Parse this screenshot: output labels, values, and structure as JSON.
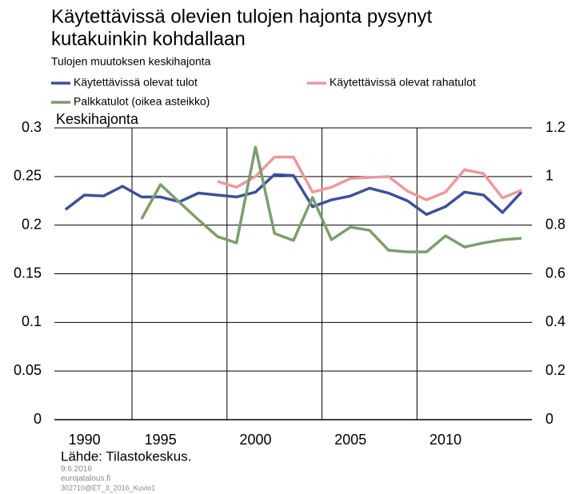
{
  "chart_data": {
    "type": "line",
    "title": [
      "Käytettävissä olevien tulojen hajonta pysynyt",
      "kutakuinkin kohdallaan"
    ],
    "subtitle": "Tulojen muutoksen keskihajonta",
    "y_label": "Keskihajonta",
    "source": "Lähde: Tilastokeskus.",
    "notes": [
      "9.6.2016",
      "eurojatalous.fi",
      "302710@ET_3_2016_Kuvio1"
    ],
    "categories": [
      null,
      "1990",
      null,
      null,
      null,
      "1995",
      null,
      null,
      null,
      null,
      "2000",
      null,
      null,
      null,
      null,
      "2005",
      null,
      null,
      null,
      null,
      "2010",
      null,
      null,
      null,
      null
    ],
    "series": [
      {
        "name": "Käytettävissä olevat tulot",
        "color": "#3f4f9d",
        "values": [
          0.216,
          0.231,
          0.23,
          0.24,
          0.229,
          0.229,
          0.224,
          0.233,
          0.231,
          0.229,
          0.234,
          0.252,
          0.251,
          0.219,
          0.226,
          0.23,
          0.238,
          0.233,
          0.225,
          0.211,
          0.219,
          0.234,
          0.231,
          0.213,
          0.234
        ]
      },
      {
        "name": "Käytettävissä olevat rahatulot",
        "color": "#f0989a",
        "values": [
          null,
          null,
          null,
          null,
          null,
          null,
          null,
          null,
          0.245,
          0.239,
          0.25,
          0.27,
          0.27,
          0.234,
          0.239,
          0.248,
          0.249,
          0.25,
          0.235,
          0.226,
          0.234,
          0.257,
          0.253,
          0.228,
          0.236
        ]
      },
      {
        "name": "Palkkatulot (oikea asteikko)",
        "color": "#7b9f6d",
        "axis": "y2",
        "values": [
          null,
          null,
          null,
          null,
          0.825,
          0.967,
          0.894,
          0.822,
          0.753,
          0.727,
          1.121,
          0.766,
          0.737,
          0.914,
          0.74,
          0.792,
          0.779,
          0.697,
          0.69,
          0.69,
          0.756,
          0.71,
          0.727,
          0.74,
          0.746
        ]
      }
    ],
    "ylim": [
      0,
      0.3
    ],
    "yticks": [
      0,
      0.05,
      0.1,
      0.15,
      0.2,
      0.25,
      0.3
    ],
    "y2lim": [
      0,
      1.2
    ],
    "y2ticks": [
      0,
      0.2,
      0.4,
      0.6,
      0.8,
      1,
      1.2
    ],
    "grid": true
  }
}
